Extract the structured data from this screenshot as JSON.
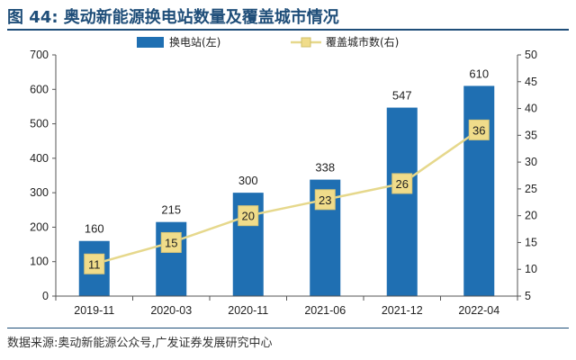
{
  "header": {
    "title": "图 44: 奥动新能源换电站数量及覆盖城市情况"
  },
  "footer": {
    "source": "数据来源:奥动新能源公众号,广发证券发展研究中心"
  },
  "chart_data": {
    "type": "bar+line",
    "categories": [
      "2019-11",
      "2020-03",
      "2020-11",
      "2021-06",
      "2021-12",
      "2022-04"
    ],
    "series": [
      {
        "name": "换电站(左)",
        "type": "bar",
        "axis": "left",
        "color": "#1f6fb2",
        "values": [
          160,
          215,
          300,
          338,
          547,
          610
        ]
      },
      {
        "name": "覆盖城市数(右)",
        "type": "line",
        "axis": "right",
        "color": "#e6d88c",
        "marker_color": "#f0dc8a",
        "values": [
          11,
          15,
          20,
          23,
          26,
          36
        ]
      }
    ],
    "y_left": {
      "min": 0,
      "max": 700,
      "ticks": [
        "0",
        "100",
        "200",
        "300",
        "400",
        "500",
        "600",
        "700"
      ]
    },
    "y_right": {
      "min": 5,
      "max": 50,
      "ticks": [
        "5",
        "10",
        "15",
        "20",
        "25",
        "30",
        "35",
        "40",
        "45",
        "50"
      ]
    },
    "legend_position": "top-center",
    "grid": false
  }
}
